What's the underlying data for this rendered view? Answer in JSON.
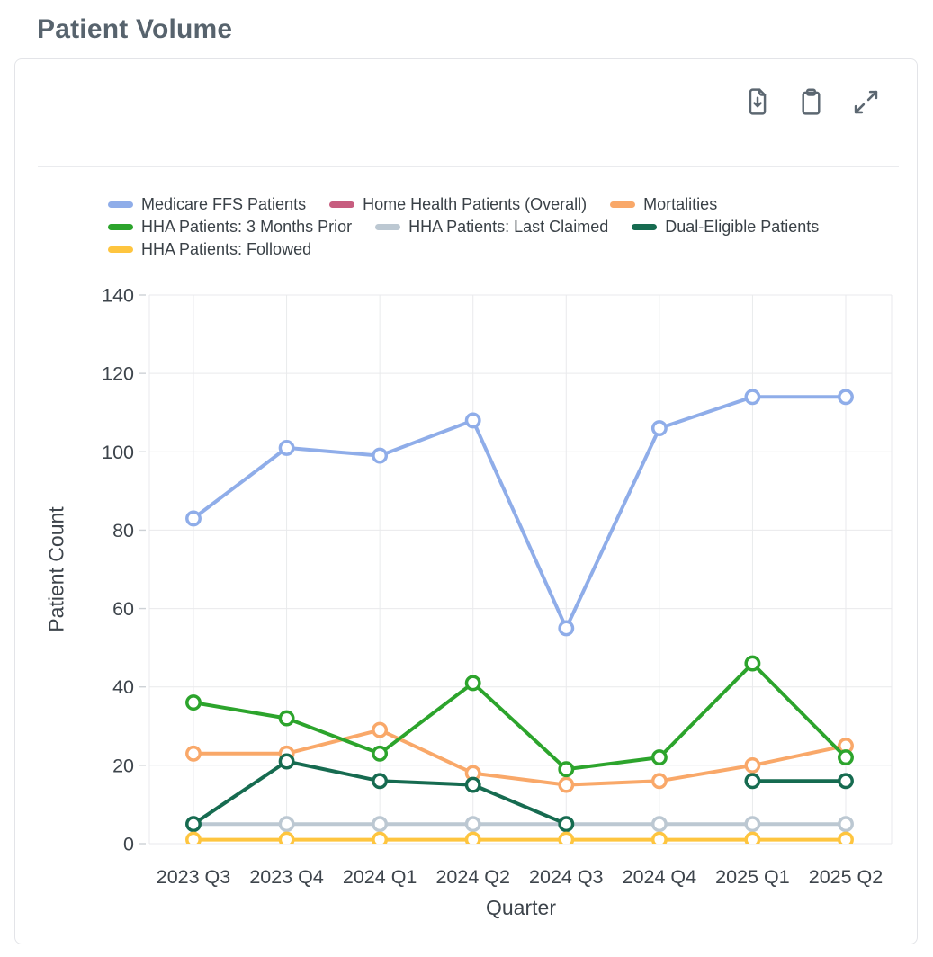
{
  "page_title": "Patient Volume",
  "toolbar": {
    "icons": [
      "download-icon",
      "clipboard-icon",
      "expand-icon"
    ]
  },
  "chart_data": {
    "type": "line",
    "title": "Patient Volume",
    "xlabel": "Quarter",
    "ylabel": "Patient Count",
    "categories": [
      "2023 Q3",
      "2023 Q4",
      "2024 Q1",
      "2024 Q2",
      "2024 Q3",
      "2024 Q4",
      "2025 Q1",
      "2025 Q2"
    ],
    "ylim": [
      0,
      140
    ],
    "yticks": [
      0,
      20,
      40,
      60,
      80,
      100,
      120,
      140
    ],
    "grid": true,
    "legend_position": "top",
    "marker": "open-circle",
    "series": [
      {
        "name": "Medicare FFS Patients",
        "color": "#8fade9",
        "values": [
          83,
          101,
          99,
          108,
          55,
          106,
          114,
          114
        ]
      },
      {
        "name": "Home Health Patients (Overall)",
        "color": "#c75d7f",
        "values": [
          null,
          null,
          null,
          null,
          null,
          null,
          null,
          null
        ]
      },
      {
        "name": "Mortalities",
        "color": "#f9a869",
        "values": [
          23,
          23,
          29,
          18,
          15,
          16,
          20,
          25
        ]
      },
      {
        "name": "HHA Patients: 3 Months Prior",
        "color": "#2ca42c",
        "values": [
          36,
          32,
          23,
          41,
          19,
          22,
          46,
          22
        ]
      },
      {
        "name": "HHA Patients: Last Claimed",
        "color": "#bcc8d2",
        "values": [
          5,
          5,
          5,
          5,
          5,
          5,
          5,
          5
        ]
      },
      {
        "name": "Dual-Eligible Patients",
        "color": "#166b50",
        "values": [
          5,
          21,
          16,
          15,
          5,
          null,
          16,
          16
        ]
      },
      {
        "name": "HHA Patients: Followed",
        "color": "#fec53f",
        "values": [
          1,
          1,
          1,
          1,
          1,
          1,
          1,
          1
        ]
      }
    ]
  }
}
